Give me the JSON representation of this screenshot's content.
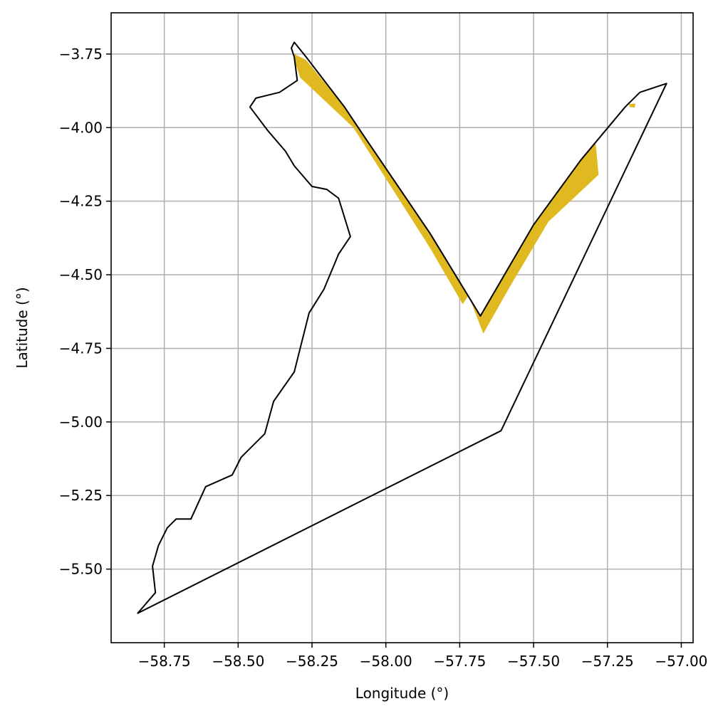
{
  "chart_data": {
    "type": "map",
    "xlabel": "Longitude (°)",
    "ylabel": "Latitude (°)",
    "xlim": [
      -58.93,
      -56.96
    ],
    "ylim": [
      -5.75,
      -3.61
    ],
    "grid": true,
    "xticks": [
      -58.75,
      -58.5,
      -58.25,
      -58.0,
      -57.75,
      -57.5,
      -57.25,
      -57.0
    ],
    "xtick_labels": [
      "−58.75",
      "−58.50",
      "−58.25",
      "−58.00",
      "−57.75",
      "−57.50",
      "−57.25",
      "−57.00"
    ],
    "yticks": [
      -3.75,
      -4.0,
      -4.25,
      -4.5,
      -4.75,
      -5.0,
      -5.25,
      -5.5
    ],
    "ytick_labels": [
      "−3.75",
      "−4.00",
      "−4.25",
      "−4.50",
      "−4.75",
      "−5.00",
      "−5.25",
      "−5.50"
    ],
    "boundary_color": "#000000",
    "fill_color": "#e0b820",
    "boundary_polygon": [
      [
        -58.31,
        -3.71
      ],
      [
        -58.27,
        -3.76
      ],
      [
        -58.14,
        -3.93
      ],
      [
        -58.08,
        -4.02
      ],
      [
        -57.85,
        -4.36
      ],
      [
        -57.68,
        -4.64
      ],
      [
        -57.5,
        -4.33
      ],
      [
        -57.34,
        -4.11
      ],
      [
        -57.19,
        -3.93
      ],
      [
        -57.14,
        -3.88
      ],
      [
        -57.05,
        -3.85
      ],
      [
        -57.61,
        -5.03
      ],
      [
        -58.84,
        -5.65
      ],
      [
        -58.78,
        -5.58
      ],
      [
        -58.79,
        -5.49
      ],
      [
        -58.77,
        -5.42
      ],
      [
        -58.74,
        -5.36
      ],
      [
        -58.71,
        -5.33
      ],
      [
        -58.66,
        -5.33
      ],
      [
        -58.61,
        -5.22
      ],
      [
        -58.52,
        -5.18
      ],
      [
        -58.49,
        -5.12
      ],
      [
        -58.41,
        -5.04
      ],
      [
        -58.38,
        -4.93
      ],
      [
        -58.31,
        -4.83
      ],
      [
        -58.29,
        -4.75
      ],
      [
        -58.26,
        -4.63
      ],
      [
        -58.21,
        -4.55
      ],
      [
        -58.16,
        -4.43
      ],
      [
        -58.12,
        -4.37
      ],
      [
        -58.16,
        -4.24
      ],
      [
        -58.2,
        -4.21
      ],
      [
        -58.25,
        -4.2
      ],
      [
        -58.31,
        -4.13
      ],
      [
        -58.34,
        -4.08
      ],
      [
        -58.4,
        -4.01
      ],
      [
        -58.46,
        -3.93
      ],
      [
        -58.44,
        -3.9
      ],
      [
        -58.36,
        -3.88
      ],
      [
        -58.3,
        -3.84
      ],
      [
        -58.31,
        -3.76
      ],
      [
        -58.32,
        -3.73
      ],
      [
        -58.31,
        -3.71
      ]
    ],
    "filled_area_polygon": [
      [
        -58.31,
        -3.75
      ],
      [
        -58.27,
        -3.77
      ],
      [
        -58.14,
        -3.93
      ],
      [
        -58.08,
        -4.02
      ],
      [
        -57.85,
        -4.36
      ],
      [
        -57.68,
        -4.64
      ],
      [
        -57.5,
        -4.33
      ],
      [
        -57.34,
        -4.11
      ],
      [
        -57.29,
        -4.05
      ],
      [
        -57.28,
        -4.16
      ],
      [
        -57.45,
        -4.32
      ],
      [
        -57.58,
        -4.54
      ],
      [
        -57.67,
        -4.7
      ],
      [
        -57.72,
        -4.57
      ],
      [
        -57.74,
        -4.6
      ],
      [
        -57.85,
        -4.41
      ],
      [
        -58.11,
        -4.0
      ],
      [
        -58.29,
        -3.83
      ],
      [
        -58.31,
        -3.77
      ]
    ],
    "filled_speck": [
      -57.165,
      -3.925
    ]
  }
}
